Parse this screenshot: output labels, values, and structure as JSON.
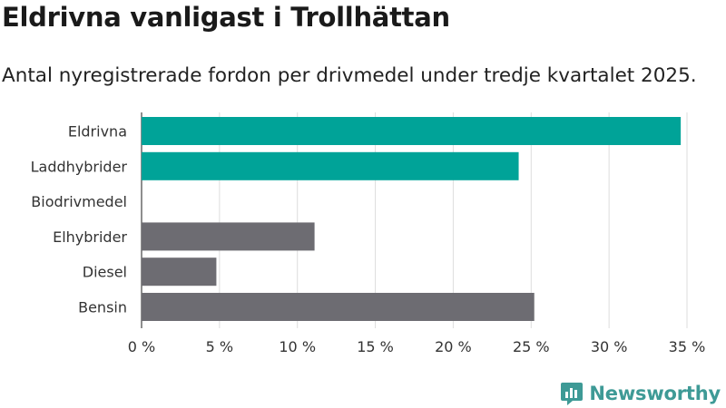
{
  "header": {
    "title": "Eldrivna vanligast i Trollhättan",
    "subtitle": "Antal nyregistrerade fordon per drivmedel under tredje kvartalet 2025."
  },
  "brand": {
    "name": "Newsworthy",
    "icon": "newsworthy-logo-icon",
    "color": "#3e9a96"
  },
  "chart_data": {
    "type": "bar",
    "orientation": "horizontal",
    "categories": [
      "Eldrivna",
      "Laddhybrider",
      "Biodrivmedel",
      "Elhybrider",
      "Diesel",
      "Bensin"
    ],
    "values": [
      34.6,
      24.2,
      0,
      11.1,
      4.8,
      25.2
    ],
    "colors": [
      "#00a398",
      "#00a398",
      "#00a398",
      "#6d6c72",
      "#6d6c72",
      "#6d6c72"
    ],
    "xlim": [
      0,
      35
    ],
    "xticks": [
      0,
      5,
      10,
      15,
      20,
      25,
      30,
      35
    ],
    "xtick_labels": [
      "0 %",
      "5 %",
      "10 %",
      "15 %",
      "20 %",
      "25 %",
      "30 %",
      "35 %"
    ],
    "grid": "vertical",
    "title": "Eldrivna vanligast i Trollhättan",
    "xlabel": "",
    "ylabel": ""
  }
}
